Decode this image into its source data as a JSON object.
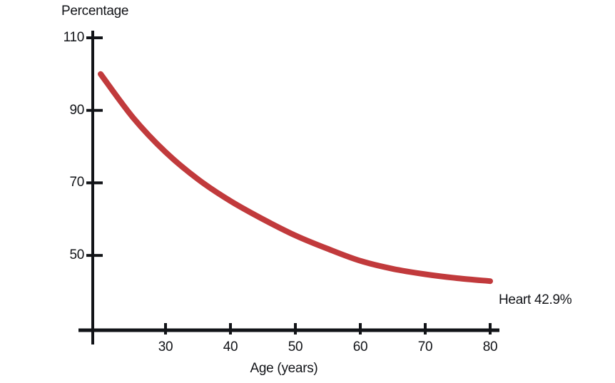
{
  "page": {
    "background_color": "#ffffff",
    "ink_color": "#121418"
  },
  "chart_data": {
    "type": "line",
    "title": "",
    "ylabel": "Percentage",
    "xlabel": "Age (years)",
    "x_ticks": [
      30,
      40,
      50,
      60,
      70,
      80
    ],
    "y_ticks": [
      110,
      90,
      70,
      50
    ],
    "xlim": [
      18.8,
      81.5
    ],
    "ylim": [
      29,
      112
    ],
    "grid": false,
    "legend_position": "none",
    "series": [
      {
        "name": "Heart",
        "color": "#c13a3c",
        "end_label": "Heart 42.9%",
        "points": [
          [
            20,
            100
          ],
          [
            25,
            88
          ],
          [
            30,
            78.5
          ],
          [
            35,
            71
          ],
          [
            40,
            65
          ],
          [
            45,
            60
          ],
          [
            50,
            55.5
          ],
          [
            55,
            51.8
          ],
          [
            60,
            48.5
          ],
          [
            65,
            46.3
          ],
          [
            70,
            44.8
          ],
          [
            75,
            43.7
          ],
          [
            80,
            42.9
          ]
        ]
      }
    ]
  }
}
